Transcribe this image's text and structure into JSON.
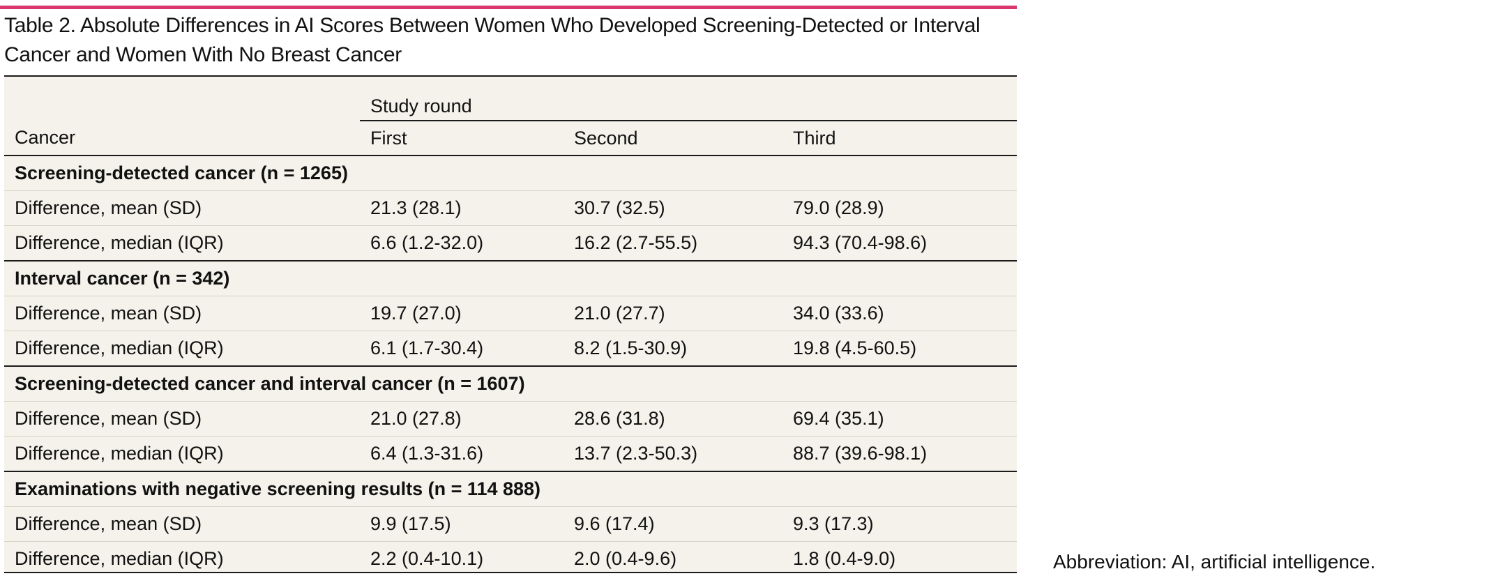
{
  "colors": {
    "accent_bar": "#d9376e",
    "table_bg": "#f4f2ea",
    "rule": "#1a1a1a"
  },
  "title": "Table 2. Absolute Differences in AI Scores Between Women Who Developed Screening-Detected or Interval Cancer and Women With No Breast Cancer",
  "header": {
    "group_label": "Study round",
    "row_label": "Cancer",
    "columns": [
      "First",
      "Second",
      "Third"
    ]
  },
  "sections": [
    {
      "label": "Screening-detected cancer (n = 1265)",
      "rows": [
        {
          "label": "Difference, mean (SD)",
          "values": [
            "21.3 (28.1)",
            "30.7 (32.5)",
            "79.0 (28.9)"
          ]
        },
        {
          "label": "Difference, median (IQR)",
          "values": [
            "6.6 (1.2-32.0)",
            "16.2 (2.7-55.5)",
            "94.3 (70.4-98.6)"
          ]
        }
      ]
    },
    {
      "label": "Interval cancer (n = 342)",
      "rows": [
        {
          "label": "Difference, mean (SD)",
          "values": [
            "19.7 (27.0)",
            "21.0 (27.7)",
            "34.0 (33.6)"
          ]
        },
        {
          "label": "Difference, median (IQR)",
          "values": [
            "6.1 (1.7-30.4)",
            "8.2 (1.5-30.9)",
            "19.8 (4.5-60.5)"
          ]
        }
      ]
    },
    {
      "label": "Screening-detected cancer and interval cancer (n = 1607)",
      "rows": [
        {
          "label": "Difference, mean (SD)",
          "values": [
            "21.0 (27.8)",
            "28.6 (31.8)",
            "69.4 (35.1)"
          ]
        },
        {
          "label": "Difference, median (IQR)",
          "values": [
            "6.4 (1.3-31.6)",
            "13.7 (2.3-50.3)",
            "88.7 (39.6-98.1)"
          ]
        }
      ]
    },
    {
      "label": "Examinations with negative screening results (n = 114 888)",
      "rows": [
        {
          "label": "Difference, mean (SD)",
          "values": [
            "9.9 (17.5)",
            "9.6 (17.4)",
            "9.3 (17.3)"
          ]
        },
        {
          "label": "Difference, median (IQR)",
          "values": [
            "2.2 (0.4-10.1)",
            "2.0 (0.4-9.6)",
            "1.8 (0.4-9.0)"
          ]
        }
      ]
    }
  ],
  "footnote": "Abbreviation: AI, artificial intelligence."
}
